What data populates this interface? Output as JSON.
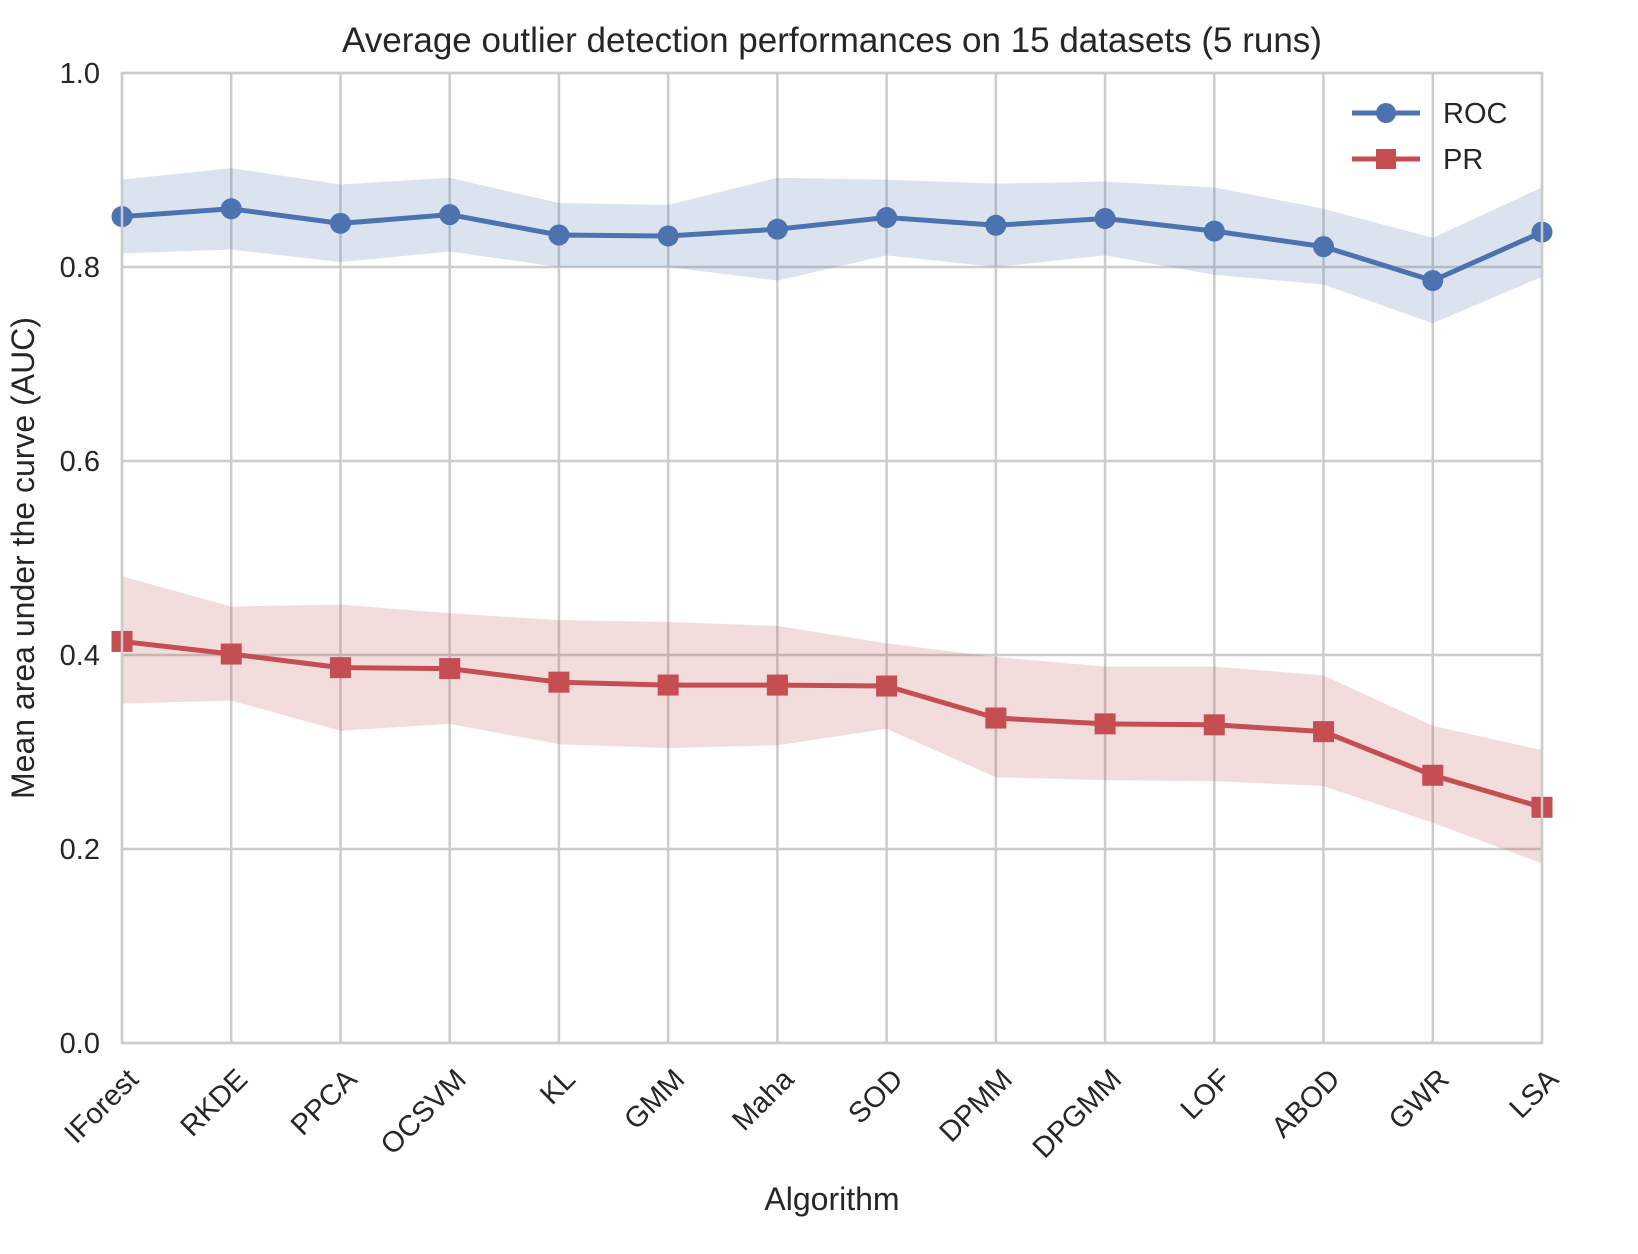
{
  "chart_data": {
    "type": "line",
    "title": "Average outlier detection performances on 15 datasets (5 runs)",
    "xlabel": "Algorithm",
    "ylabel": "Mean area under the curve (AUC)",
    "ylim": [
      0.0,
      1.0
    ],
    "yticks": [
      "0.0",
      "0.2",
      "0.4",
      "0.6",
      "0.8",
      "1.0"
    ],
    "categories": [
      "IForest",
      "RKDE",
      "PPCA",
      "OCSVM",
      "KL",
      "GMM",
      "Maha",
      "SOD",
      "DPMM",
      "DPGMM",
      "LOF",
      "ABOD",
      "GWR",
      "LSA"
    ],
    "grid": true,
    "legend_position": "top-right",
    "series": [
      {
        "name": "ROC",
        "color": "#4c72b0",
        "marker": "circle",
        "values": [
          0.852,
          0.86,
          0.845,
          0.854,
          0.833,
          0.832,
          0.839,
          0.851,
          0.843,
          0.85,
          0.837,
          0.821,
          0.786,
          0.836
        ],
        "upper": [
          0.89,
          0.902,
          0.885,
          0.892,
          0.866,
          0.864,
          0.892,
          0.89,
          0.886,
          0.888,
          0.882,
          0.86,
          0.83,
          0.882
        ],
        "lower": [
          0.814,
          0.818,
          0.805,
          0.816,
          0.8,
          0.8,
          0.786,
          0.812,
          0.8,
          0.812,
          0.792,
          0.782,
          0.742,
          0.79
        ]
      },
      {
        "name": "PR",
        "color": "#c44e52",
        "marker": "square",
        "values": [
          0.414,
          0.401,
          0.387,
          0.386,
          0.372,
          0.369,
          0.369,
          0.368,
          0.335,
          0.329,
          0.328,
          0.321,
          0.276,
          0.243
        ],
        "upper": [
          0.481,
          0.45,
          0.452,
          0.443,
          0.436,
          0.434,
          0.43,
          0.412,
          0.398,
          0.388,
          0.388,
          0.379,
          0.327,
          0.302
        ],
        "lower": [
          0.35,
          0.353,
          0.322,
          0.329,
          0.308,
          0.304,
          0.307,
          0.324,
          0.274,
          0.271,
          0.27,
          0.265,
          0.227,
          0.185
        ]
      }
    ]
  }
}
